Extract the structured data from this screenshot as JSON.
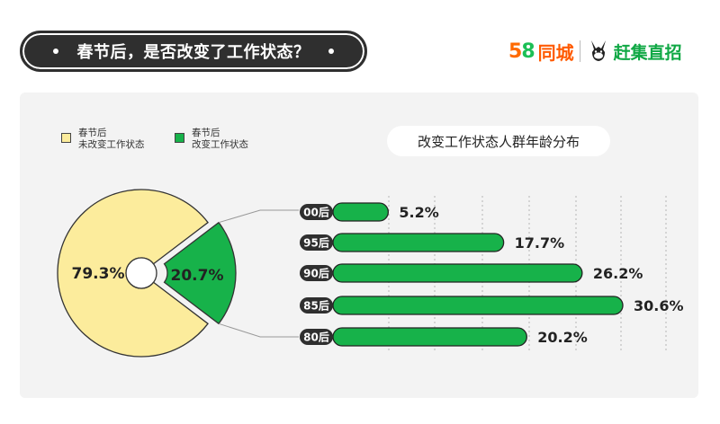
{
  "header": {
    "title": "春节后，是否改变了工作状态？"
  },
  "logo": {
    "digit5": "5",
    "digit8": "8",
    "name": "同城",
    "brand": "赶集直招"
  },
  "colors": {
    "unchanged": "#fcec9c",
    "changed": "#17b24a",
    "dark": "#2f2f2f",
    "card": "#f3f3f3"
  },
  "chart_data": [
    {
      "type": "pie",
      "categories": [
        "春节后 未改变工作状态",
        "春节后 改变工作状态"
      ],
      "values": [
        79.3,
        20.7
      ],
      "labels": [
        "79.3%",
        "20.7%"
      ],
      "legend": [
        {
          "line1": "春节后",
          "line2": "未改变工作状态"
        },
        {
          "line1": "春节后",
          "line2": "改变工作状态"
        }
      ],
      "legend_position": "top-left"
    },
    {
      "type": "bar",
      "orientation": "horizontal",
      "title": "改变工作状态人群年龄分布",
      "categories": [
        "00后",
        "95后",
        "90后",
        "85后",
        "80后"
      ],
      "values": [
        5.2,
        17.7,
        26.2,
        30.6,
        20.2
      ],
      "labels": [
        "5.2%",
        "17.7%",
        "26.2%",
        "30.6%",
        "20.2%"
      ],
      "xlim": [
        0,
        35
      ],
      "grid": true
    }
  ]
}
